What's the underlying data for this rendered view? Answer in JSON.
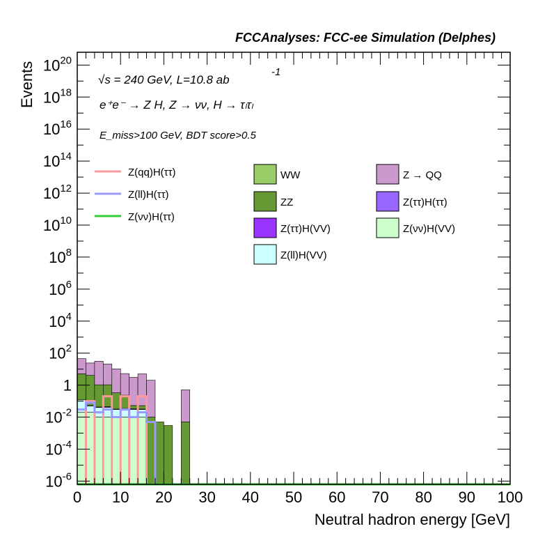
{
  "header": "FCCAnalyses: FCC-ee Simulation (Delphes)",
  "annotations": {
    "sqrt_s": "√s = 240 GeV, L=10.8 ab",
    "lumi_exp": "-1",
    "process": "e⁺e⁻ → Z H, Z → νν, H → τₗτₗ",
    "selection": "E_miss>100 GeV, BDT score>0.5"
  },
  "chart_data": {
    "type": "histogram",
    "title": "FCCAnalyses: FCC-ee Simulation (Delphes)",
    "xlabel": "Neutral hadron energy [GeV]",
    "ylabel": "Events",
    "xlim": [
      0,
      100
    ],
    "ylog": true,
    "ylim_exp": [
      -6.2,
      20.8
    ],
    "x_ticks": [
      0,
      10,
      20,
      30,
      40,
      50,
      60,
      70,
      80,
      90,
      100
    ],
    "y_tick_exps": [
      -6,
      -4,
      -2,
      0,
      2,
      4,
      6,
      8,
      10,
      12,
      14,
      16,
      18,
      20
    ],
    "bin_width": 2,
    "stacked_backgrounds": [
      {
        "name": "Z(νν)H(VV)",
        "color": "#ccffcc",
        "values": [
          0.02,
          0.02,
          0.01,
          0.01,
          0.01,
          0.01,
          0.01,
          0.01,
          0,
          0,
          0,
          0,
          0,
          0,
          0,
          0,
          0,
          0,
          0,
          0,
          0,
          0,
          0,
          0,
          0,
          0,
          0,
          0,
          0,
          0,
          0,
          0,
          0,
          0,
          0,
          0,
          0,
          0,
          0,
          0,
          0,
          0,
          0,
          0,
          0,
          0,
          0,
          0,
          0,
          0
        ]
      },
      {
        "name": "Z(ll)H(VV)",
        "color": "#ccffff",
        "values": [
          0.1,
          0.03,
          0.03,
          0.03,
          0.02,
          0.02,
          0.02,
          0.02,
          0,
          0,
          0,
          0,
          0,
          0,
          0,
          0,
          0,
          0,
          0,
          0,
          0,
          0,
          0,
          0,
          0,
          0,
          0,
          0,
          0,
          0,
          0,
          0,
          0,
          0,
          0,
          0,
          0,
          0,
          0,
          0,
          0,
          0,
          0,
          0,
          0,
          0,
          0,
          0,
          0,
          0
        ]
      },
      {
        "name": "Z(ττ)H(VV)",
        "color": "#9933ff",
        "values": [
          0,
          0.002,
          0.003,
          0.005,
          0.002,
          0.005,
          0.003,
          0.002,
          0,
          0,
          0,
          0,
          0,
          0,
          0,
          0,
          0,
          0,
          0,
          0,
          0,
          0,
          0,
          0,
          0,
          0,
          0,
          0,
          0,
          0,
          0,
          0,
          0,
          0,
          0,
          0,
          0,
          0,
          0,
          0,
          0,
          0,
          0,
          0,
          0,
          0,
          0,
          0,
          0,
          0
        ]
      },
      {
        "name": "Z(ττ)H(ττ)",
        "color": "#9966ff",
        "values": [
          0,
          0,
          0,
          0,
          0,
          0,
          0,
          0,
          0,
          0,
          0,
          0,
          0,
          0,
          0,
          0,
          0,
          0,
          0,
          0,
          0,
          0,
          0,
          0,
          0,
          0,
          0,
          0,
          0,
          0,
          0,
          0,
          0,
          0,
          0,
          0,
          0,
          0,
          0,
          0,
          0,
          0,
          0,
          0,
          0,
          0,
          0,
          0,
          0,
          0
        ]
      },
      {
        "name": "ZZ",
        "color": "#669933",
        "values": [
          5,
          4,
          1,
          1,
          0.3,
          0.2,
          0.02,
          0.02,
          0.01,
          0.005,
          0.003,
          0,
          0.005,
          0,
          0,
          0,
          0,
          0,
          0,
          0,
          0,
          0,
          0,
          0,
          0,
          0,
          0,
          0,
          0,
          0,
          0,
          0,
          0,
          0,
          0,
          0,
          0,
          0,
          0,
          0,
          0,
          0,
          0,
          0,
          0,
          0,
          0,
          0,
          0,
          0
        ]
      },
      {
        "name": "WW",
        "color": "#99cc66",
        "values": [
          0,
          0,
          0,
          0,
          0,
          0,
          0,
          0,
          0,
          0,
          0,
          0,
          0,
          0,
          0,
          0,
          0,
          0,
          0,
          0,
          0,
          0,
          0,
          0,
          0,
          0,
          0,
          0,
          0,
          0,
          0,
          0,
          0,
          0,
          0,
          0,
          0,
          0,
          0,
          0,
          0,
          0,
          0,
          0,
          0,
          0,
          0,
          0,
          0,
          0
        ]
      },
      {
        "name": "Z → QQ",
        "color": "#cc99cc",
        "values": [
          40,
          20,
          30,
          20,
          10,
          5,
          3,
          5,
          2,
          0,
          0,
          0,
          0.5,
          0,
          0,
          0,
          0,
          0,
          0,
          0,
          0,
          0,
          0,
          0,
          0,
          0,
          0,
          0,
          0,
          0,
          0,
          0,
          0,
          0,
          0,
          0,
          0,
          0,
          0,
          0,
          0,
          0,
          0,
          0,
          0,
          0,
          0,
          0,
          0,
          0
        ]
      }
    ],
    "signals": [
      {
        "name": "Z(qq)H(ττ)",
        "color": "#ff9999",
        "values": [
          0,
          0.1,
          0,
          0.2,
          0,
          0.2,
          0,
          0.2,
          0,
          0,
          0,
          0,
          0,
          0,
          0,
          0,
          0,
          0,
          0,
          0,
          0,
          0,
          0,
          0,
          0,
          0,
          0,
          0,
          0,
          0,
          0,
          0,
          0,
          0,
          0,
          0,
          0,
          0,
          0,
          0,
          0,
          0,
          0,
          0,
          0,
          0,
          0,
          0,
          0,
          0
        ]
      },
      {
        "name": "Z(ll)H(ττ)",
        "color": "#9999ff",
        "values": [
          0.03,
          0.08,
          0.02,
          0.03,
          0.01,
          0.03,
          0.01,
          0.02,
          0.005,
          0,
          0,
          0,
          0,
          0,
          0,
          0,
          0,
          0,
          0,
          0,
          0,
          0,
          0,
          0,
          0,
          0,
          0,
          0,
          0,
          0,
          0,
          0,
          0,
          0,
          0,
          0,
          0,
          0,
          0,
          0,
          0,
          0,
          0,
          0,
          0,
          0,
          0,
          0,
          0,
          0
        ]
      },
      {
        "name": "Z(νν)H(ττ)",
        "color": "#33cc33",
        "values": [
          0,
          0,
          0,
          0,
          0,
          0,
          0,
          0,
          0,
          0,
          0,
          0,
          0,
          0,
          0,
          0,
          0,
          0,
          0,
          0,
          0,
          0,
          0,
          0,
          0,
          0,
          0,
          0,
          0,
          0,
          0,
          0,
          0,
          0,
          0,
          0,
          0,
          0,
          0,
          0,
          0,
          0,
          0,
          0,
          0,
          0,
          0,
          0,
          0,
          0
        ]
      }
    ],
    "legend_lines": [
      "Z(qq)H(ττ)",
      "Z(ll)H(ττ)",
      "Z(νν)H(ττ)"
    ],
    "legend_boxes": [
      "WW",
      "Z → QQ",
      "ZZ",
      "Z(ττ)H(ττ)",
      "Z(ττ)H(VV)",
      "Z(νν)H(VV)",
      "Z(ll)H(VV)"
    ]
  }
}
